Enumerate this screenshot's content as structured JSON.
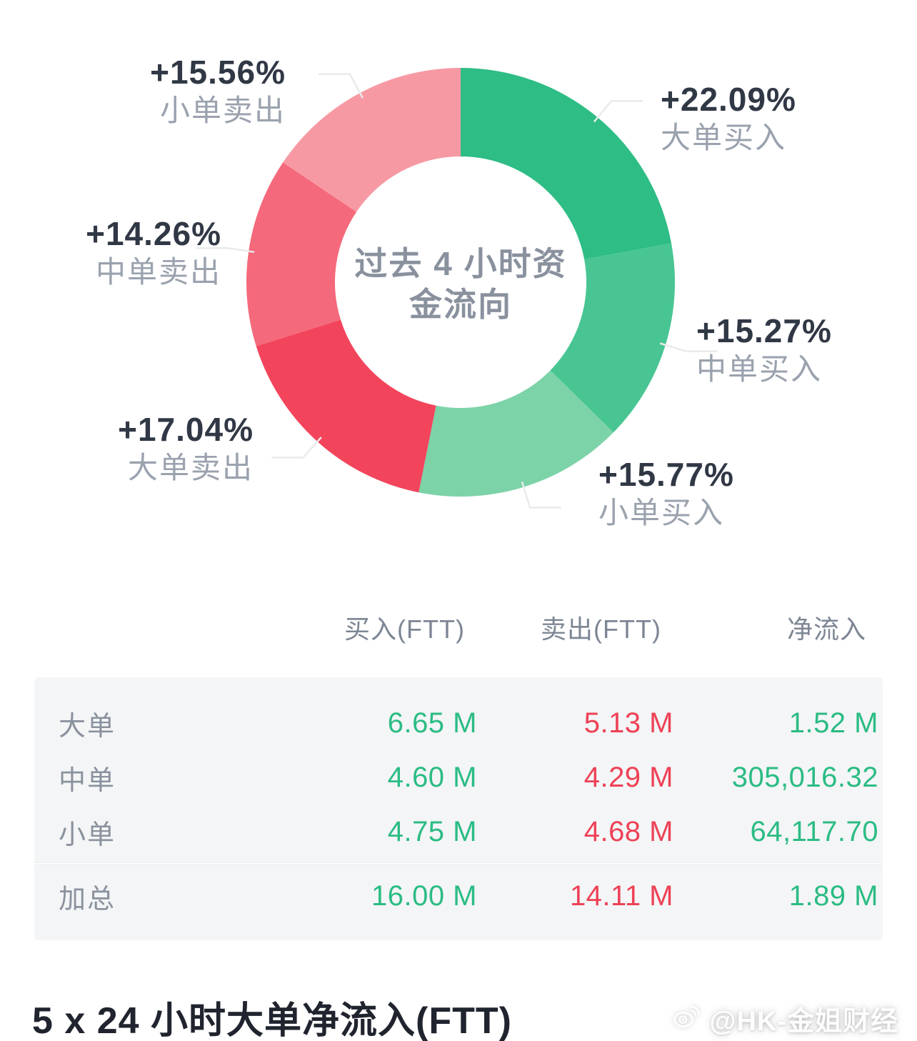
{
  "colors": {
    "green": "#2BBC84",
    "red": "#EE4156",
    "panel": "#F4F5F6",
    "leader-line": "#E9EAEC"
  },
  "chart_data": {
    "type": "pie",
    "donut": true,
    "title": "过去 4 小时资金流向",
    "center_label": {
      "line1": "过去 4 小时资",
      "line2": "金流向"
    },
    "legend_position": "around-labels",
    "slices": [
      {
        "name": "大单买入",
        "pct_label": "+22.09%",
        "value": 22.09,
        "color": "#2DBD85"
      },
      {
        "name": "中单买入",
        "pct_label": "+15.27%",
        "value": 15.27,
        "color": "#48C592"
      },
      {
        "name": "小单买入",
        "pct_label": "+15.77%",
        "value": 15.77,
        "color": "#7DD3A8"
      },
      {
        "name": "大单卖出",
        "pct_label": "+17.04%",
        "value": 17.04,
        "color": "#F2455C"
      },
      {
        "name": "中单卖出",
        "pct_label": "+14.26%",
        "value": 14.26,
        "color": "#F4697B"
      },
      {
        "name": "小单卖出",
        "pct_label": "+15.56%",
        "value": 15.56,
        "color": "#F799A3"
      }
    ]
  },
  "table": {
    "headers": [
      "买入(FTT)",
      "卖出(FTT)",
      "净流入"
    ],
    "rows": [
      {
        "label": "大单",
        "buy": "6.65 M",
        "sell": "5.13 M",
        "net": "1.52 M"
      },
      {
        "label": "中单",
        "buy": "4.60 M",
        "sell": "4.29 M",
        "net": "305,016.32"
      },
      {
        "label": "小单",
        "buy": "4.75 M",
        "sell": "4.68 M",
        "net": "64,117.70"
      },
      {
        "label": "加总",
        "buy": "16.00 M",
        "sell": "14.11 M",
        "net": "1.89 M"
      }
    ]
  },
  "footer": {
    "title": "5 x 24 小时大单净流入(FTT)",
    "watermark": "@HK-金姐财经"
  }
}
